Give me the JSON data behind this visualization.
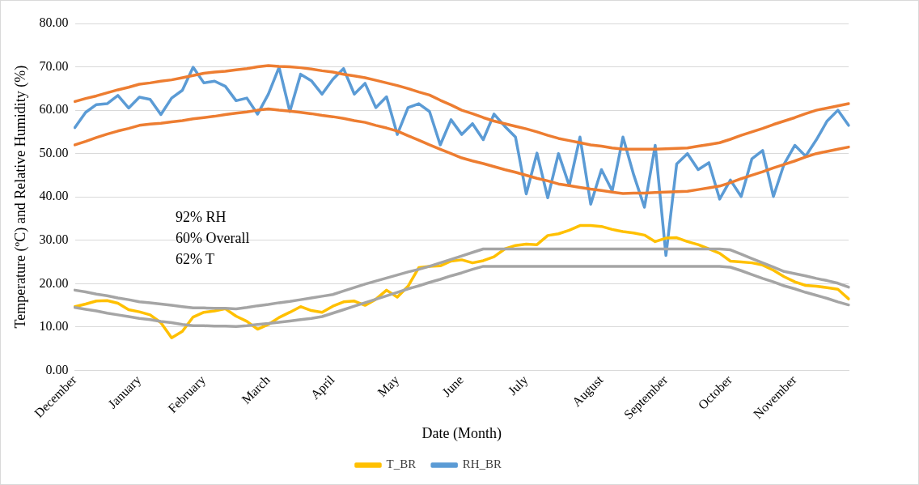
{
  "chart_data": {
    "type": "line",
    "xlabel": "Date (Month)",
    "ylabel": "Temperature (ºC) and Relative Humidity (%)",
    "categories": [
      "December",
      null,
      null,
      null,
      null,
      null,
      "January",
      null,
      null,
      null,
      null,
      null,
      "February",
      null,
      null,
      null,
      null,
      null,
      "March",
      null,
      null,
      null,
      null,
      null,
      "April",
      null,
      null,
      null,
      null,
      null,
      "May",
      null,
      null,
      null,
      null,
      null,
      "June",
      null,
      null,
      null,
      null,
      null,
      "July",
      null,
      null,
      null,
      null,
      null,
      null,
      "August",
      null,
      null,
      null,
      null,
      null,
      "September",
      null,
      null,
      null,
      null,
      null,
      "October",
      null,
      null,
      null,
      null,
      null,
      "November",
      null,
      null,
      null,
      null,
      null
    ],
    "ylim": [
      0,
      80
    ],
    "yticks": [
      {
        "value": 0,
        "label": "0.00"
      },
      {
        "value": 10,
        "label": "10.00"
      },
      {
        "value": 20,
        "label": "20.00"
      },
      {
        "value": 30,
        "label": "30.00"
      },
      {
        "value": 40,
        "label": "40.00"
      },
      {
        "value": 50,
        "label": "50.00"
      },
      {
        "value": 60,
        "label": "60.00"
      },
      {
        "value": 70,
        "label": "70.00"
      },
      {
        "value": 80,
        "label": "80.00"
      }
    ],
    "grid": "y",
    "legend": "bottom",
    "marker": "none",
    "line_style": "solid",
    "annotations": [
      "92% RH",
      "60% Overall",
      "62% T"
    ],
    "series": [
      {
        "color": "#ed7d31",
        "values": [
          62,
          62.7,
          63.3,
          64,
          64.7,
          65.3,
          66,
          66.3,
          66.7,
          67,
          67.5,
          68,
          68.5,
          68.8,
          69,
          69.3,
          69.6,
          70,
          70.3,
          70.1,
          70,
          69.8,
          69.5,
          69.1,
          68.8,
          68.3,
          67.9,
          67.5,
          66.9,
          66.3,
          65.7,
          65,
          64.2,
          63.5,
          62.3,
          61.2,
          60,
          59.2,
          58.3,
          57.5,
          56.9,
          56.3,
          55.7,
          55,
          54.2,
          53.5,
          53,
          52.5,
          52,
          51.7,
          51.3,
          51,
          51,
          51,
          51,
          51.1,
          51.2,
          51.3,
          51.7,
          52.1,
          52.5,
          53.3,
          54.2,
          55,
          55.8,
          56.7,
          57.5,
          58.3,
          59.2,
          60,
          60.5,
          61,
          61.5
        ]
      },
      {
        "color": "#ed7d31",
        "values": [
          52,
          52.8,
          53.7,
          54.5,
          55.2,
          55.8,
          56.5,
          56.8,
          57,
          57.3,
          57.6,
          58,
          58.3,
          58.6,
          59,
          59.3,
          59.6,
          60,
          60.3,
          60,
          59.8,
          59.5,
          59.2,
          58.8,
          58.5,
          58.1,
          57.6,
          57.2,
          56.5,
          55.9,
          55.2,
          54.1,
          53.1,
          52,
          51,
          50,
          49,
          48.3,
          47.7,
          47,
          46.3,
          45.7,
          45,
          44.3,
          43.7,
          43,
          42.6,
          42.2,
          41.8,
          41.5,
          41.1,
          40.8,
          40.9,
          40.9,
          41,
          41.1,
          41.2,
          41.3,
          41.7,
          42.1,
          42.5,
          43.3,
          44.2,
          45,
          45.8,
          46.7,
          47.5,
          48.3,
          49.2,
          50,
          50.5,
          51,
          51.5
        ]
      },
      {
        "color": "#a5a5a5",
        "values": [
          18.5,
          18.1,
          17.6,
          17.2,
          16.7,
          16.3,
          15.8,
          15.6,
          15.3,
          15,
          14.7,
          14.4,
          14.4,
          14.3,
          14.3,
          14.2,
          14.5,
          14.9,
          15.2,
          15.6,
          15.9,
          16.3,
          16.7,
          17.1,
          17.5,
          18.3,
          19.1,
          19.9,
          20.6,
          21.3,
          22,
          22.7,
          23.3,
          24,
          24.8,
          25.6,
          26.4,
          27.2,
          28,
          28,
          28,
          28,
          28,
          28,
          28,
          28,
          28,
          28,
          28,
          28,
          28,
          28,
          28,
          28,
          28,
          28,
          28,
          28,
          28,
          28,
          28,
          27.8,
          26.8,
          25.8,
          24.8,
          23.8,
          22.8,
          22.3,
          21.8,
          21.2,
          20.7,
          20.1,
          19.2
        ]
      },
      {
        "color": "#a5a5a5",
        "values": [
          14.5,
          14.1,
          13.7,
          13.2,
          12.8,
          12.4,
          12,
          11.7,
          11.3,
          11,
          10.6,
          10.3,
          10.3,
          10.2,
          10.2,
          10.1,
          10.3,
          10.6,
          10.8,
          11.1,
          11.4,
          11.7,
          12,
          12.4,
          13.2,
          14,
          14.8,
          15.6,
          16.4,
          17.2,
          18,
          18.8,
          19.5,
          20.3,
          21,
          21.8,
          22.5,
          23.3,
          24,
          24,
          24,
          24,
          24,
          24,
          24,
          24,
          24,
          24,
          24,
          24,
          24,
          24,
          24,
          24,
          24,
          24,
          24,
          24,
          24,
          24,
          24,
          23.8,
          23,
          22.1,
          21.2,
          20.4,
          19.5,
          18.8,
          18,
          17.3,
          16.6,
          15.8,
          15.1
        ]
      },
      {
        "name": "T_BR",
        "color": "#ffc000",
        "values": [
          14.7,
          15.3,
          16,
          16.1,
          15.5,
          14,
          13.5,
          12.8,
          11,
          7.5,
          9,
          12.3,
          13.4,
          13.7,
          14.2,
          12.5,
          11.3,
          9.5,
          10.6,
          12.2,
          13.4,
          14.7,
          13.8,
          13.4,
          14.8,
          15.8,
          16,
          15,
          16.4,
          18.5,
          16.9,
          19.4,
          23.7,
          24,
          24.1,
          25.2,
          25.5,
          24.8,
          25.3,
          26.2,
          28,
          28.8,
          29.1,
          29,
          31.1,
          31.5,
          32.3,
          33.4,
          33.4,
          33.2,
          32.5,
          32,
          31.7,
          31.2,
          29.7,
          30.5,
          30.6,
          29.7,
          29,
          28,
          27,
          25.2,
          25,
          24.8,
          24.3,
          23.1,
          21.6,
          20.4,
          19.6,
          19.4,
          19.1,
          18.7,
          16.5
        ]
      },
      {
        "name": "RH_BR",
        "color": "#5b9bd5",
        "values": [
          56,
          59.5,
          61.3,
          61.5,
          63.4,
          60.5,
          63,
          62.5,
          59,
          62.8,
          64.6,
          69.9,
          66.3,
          66.7,
          65.5,
          62.2,
          62.8,
          59.1,
          63.7,
          69.9,
          59.7,
          68.3,
          66.8,
          63.7,
          67.1,
          69.6,
          63.7,
          66.2,
          60.6,
          63.1,
          54.4,
          60.6,
          61.5,
          59.7,
          52,
          57.8,
          54.4,
          56.9,
          53.2,
          59.1,
          56.3,
          53.8,
          40.7,
          50.1,
          39.8,
          50,
          42.6,
          53.8,
          38.3,
          46.3,
          41.4,
          53.8,
          45.1,
          37.6,
          51.9,
          26.5,
          47.6,
          50,
          46.3,
          47.9,
          39.5,
          43.9,
          40.1,
          48.8,
          50.7,
          40.1,
          47.6,
          51.9,
          49.4,
          53.2,
          57.5,
          60,
          56.5
        ]
      }
    ]
  }
}
